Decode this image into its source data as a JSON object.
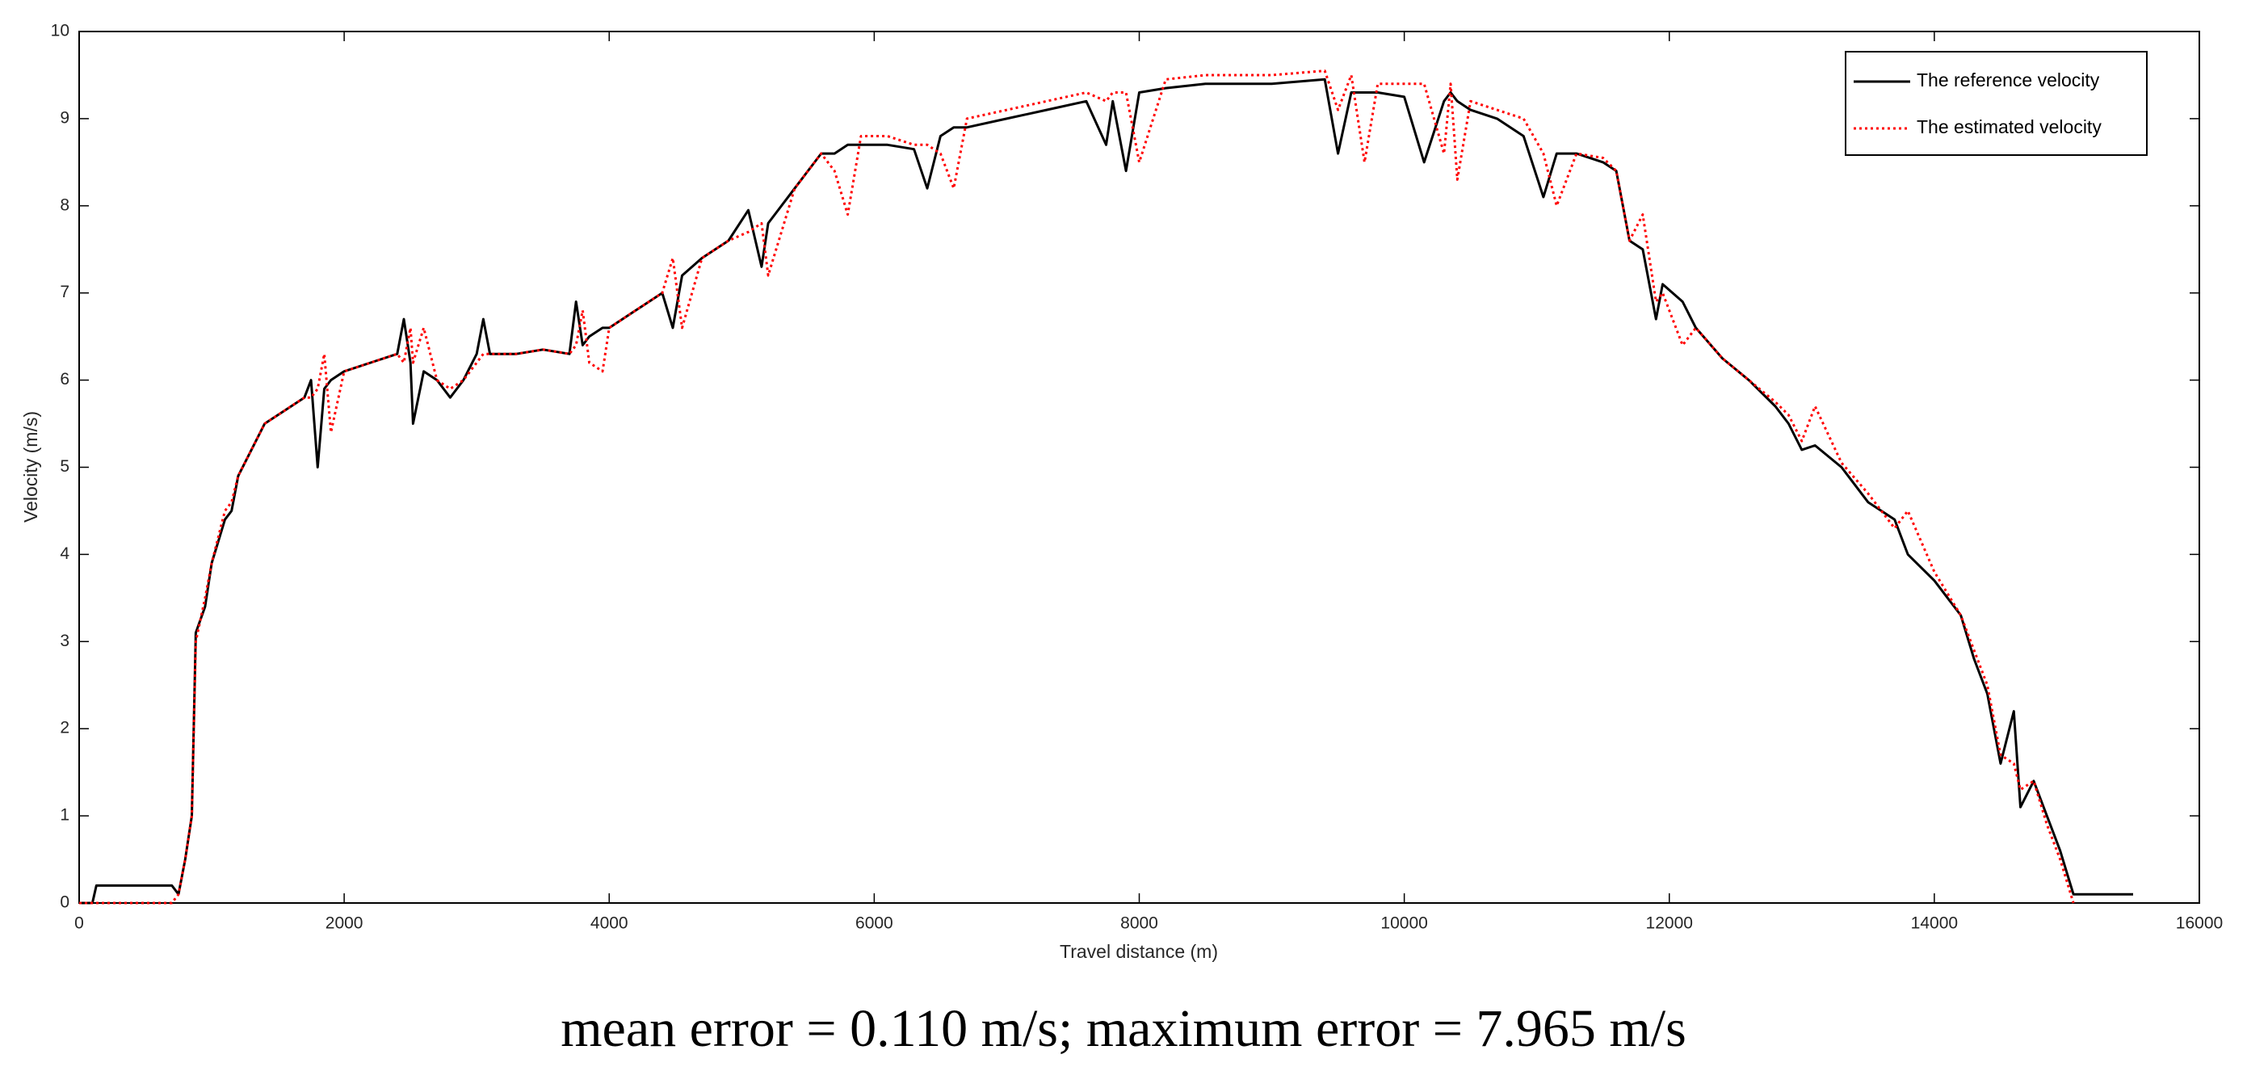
{
  "chart_data": {
    "type": "line",
    "xlabel": "Travel distance (m)",
    "ylabel": "Velocity (m/s)",
    "caption": "mean error = 0.110 m/s; maximum error = 7.965 m/s",
    "legend": "upper right",
    "x": [
      0,
      100,
      130,
      700,
      750,
      800,
      850,
      880,
      950,
      1000,
      1100,
      1150,
      1200,
      1300,
      1400,
      1500,
      1700,
      1750,
      1800,
      1850,
      1900,
      2000,
      2200,
      2400,
      2450,
      2500,
      2520,
      2600,
      2700,
      2800,
      2900,
      3000,
      3050,
      3100,
      3300,
      3500,
      3700,
      3750,
      3800,
      3850,
      3950,
      4000,
      4200,
      4400,
      4480,
      4550,
      4700,
      4900,
      5050,
      5150,
      5200,
      5400,
      5600,
      5700,
      5800,
      5900,
      6100,
      6300,
      6400,
      6500,
      6600,
      6700,
      7000,
      7300,
      7600,
      7750,
      7800,
      7900,
      8000,
      8200,
      8500,
      9000,
      9400,
      9500,
      9600,
      9700,
      9800,
      10000,
      10150,
      10300,
      10350,
      10400,
      10500,
      10700,
      10900,
      11050,
      11150,
      11300,
      11500,
      11600,
      11700,
      11800,
      11900,
      11950,
      12100,
      12200,
      12400,
      12600,
      12800,
      12900,
      13000,
      13100,
      13300,
      13500,
      13700,
      13800,
      14000,
      14200,
      14300,
      14400,
      14500,
      14600,
      14650,
      14750,
      14850,
      14950,
      15050,
      15500
    ],
    "series": [
      {
        "name": "The reference velocity",
        "color": "#000000",
        "dash": "solid",
        "values": [
          0,
          0,
          0.2,
          0.2,
          0.1,
          0.5,
          1.0,
          3.1,
          3.4,
          3.9,
          4.4,
          4.5,
          4.9,
          5.2,
          5.5,
          5.6,
          5.8,
          6.0,
          5.0,
          5.9,
          6.0,
          6.1,
          6.2,
          6.3,
          6.7,
          6.2,
          5.5,
          6.1,
          6.0,
          5.8,
          6.0,
          6.3,
          6.7,
          6.3,
          6.3,
          6.35,
          6.3,
          6.9,
          6.4,
          6.5,
          6.6,
          6.6,
          6.8,
          7.0,
          6.6,
          7.2,
          7.4,
          7.6,
          7.95,
          7.3,
          7.8,
          8.2,
          8.6,
          8.6,
          8.7,
          8.7,
          8.7,
          8.65,
          8.2,
          8.8,
          8.9,
          8.9,
          9.0,
          9.1,
          9.2,
          8.7,
          9.2,
          8.4,
          9.3,
          9.35,
          9.4,
          9.4,
          9.45,
          8.6,
          9.3,
          9.3,
          9.3,
          9.25,
          8.5,
          9.2,
          9.3,
          9.2,
          9.1,
          9.0,
          8.8,
          8.1,
          8.6,
          8.6,
          8.5,
          8.4,
          7.6,
          7.5,
          6.7,
          7.1,
          6.9,
          6.6,
          6.25,
          6.0,
          5.7,
          5.5,
          5.2,
          5.25,
          5.0,
          4.6,
          4.4,
          4.0,
          3.7,
          3.3,
          2.8,
          2.4,
          1.6,
          2.2,
          1.1,
          1.4,
          1.0,
          0.6,
          0.1,
          0.1
        ]
      },
      {
        "name": "The estimated velocity",
        "color": "#ff0000",
        "dash": "dotted",
        "values": [
          0,
          0,
          0,
          0,
          0.1,
          0.5,
          1.0,
          3.0,
          3.5,
          3.9,
          4.5,
          4.6,
          4.9,
          5.2,
          5.5,
          5.6,
          5.8,
          5.8,
          5.9,
          6.3,
          5.4,
          6.1,
          6.2,
          6.3,
          6.2,
          6.6,
          6.2,
          6.6,
          6.0,
          5.9,
          6.0,
          6.2,
          6.3,
          6.3,
          6.3,
          6.35,
          6.3,
          6.4,
          6.8,
          6.2,
          6.1,
          6.6,
          6.8,
          7.0,
          7.4,
          6.6,
          7.4,
          7.6,
          7.7,
          7.8,
          7.2,
          8.2,
          8.6,
          8.4,
          7.9,
          8.8,
          8.8,
          8.7,
          8.7,
          8.6,
          8.2,
          9.0,
          9.1,
          9.2,
          9.3,
          9.2,
          9.3,
          9.3,
          8.5,
          9.45,
          9.5,
          9.5,
          9.55,
          9.1,
          9.5,
          8.5,
          9.4,
          9.4,
          9.4,
          8.6,
          9.4,
          8.3,
          9.2,
          9.1,
          9.0,
          8.6,
          8.0,
          8.6,
          8.55,
          8.4,
          7.6,
          7.9,
          6.9,
          7.0,
          6.4,
          6.6,
          6.25,
          6.0,
          5.75,
          5.6,
          5.3,
          5.7,
          5.05,
          4.7,
          4.3,
          4.5,
          3.8,
          3.3,
          2.9,
          2.5,
          1.7,
          1.6,
          1.3,
          1.4,
          0.9,
          0.5,
          0.0,
          null
        ]
      }
    ],
    "xlim": [
      0,
      16000
    ],
    "xticks": [
      0,
      2000,
      4000,
      6000,
      8000,
      10000,
      12000,
      14000,
      16000
    ],
    "ylim": [
      0,
      10
    ],
    "yticks": [
      0,
      1,
      2,
      3,
      4,
      5,
      6,
      7,
      8,
      9,
      10
    ]
  }
}
